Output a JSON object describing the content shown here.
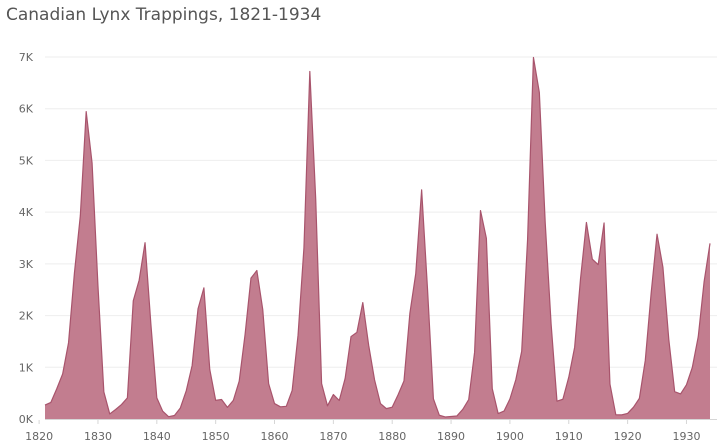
{
  "title": "Canadian Lynx Trappings, 1821-1934",
  "colors": {
    "area_fill": "#c27d8f",
    "area_line": "#a8546c",
    "gridline": "#eeeeee",
    "axis_line": "#d6d6d6"
  },
  "chart_data": {
    "type": "area",
    "title": "Canadian Lynx Trappings, 1821-1934",
    "xlabel": "",
    "ylabel": "",
    "xlim": [
      1821,
      1934
    ],
    "ylim": [
      0,
      7000
    ],
    "grid": true,
    "legend": "none",
    "x_ticks": [
      {
        "value": 1820,
        "label": "1820"
      },
      {
        "value": 1830,
        "label": "1830"
      },
      {
        "value": 1840,
        "label": "1840"
      },
      {
        "value": 1850,
        "label": "1850"
      },
      {
        "value": 1860,
        "label": "1860"
      },
      {
        "value": 1870,
        "label": "1870"
      },
      {
        "value": 1880,
        "label": "1880"
      },
      {
        "value": 1890,
        "label": "1890"
      },
      {
        "value": 1900,
        "label": "1900"
      },
      {
        "value": 1910,
        "label": "1910"
      },
      {
        "value": 1920,
        "label": "1920"
      },
      {
        "value": 1930,
        "label": "1930"
      }
    ],
    "y_ticks": [
      {
        "value": 0,
        "label": "0K"
      },
      {
        "value": 1000,
        "label": "1K"
      },
      {
        "value": 2000,
        "label": "2K"
      },
      {
        "value": 3000,
        "label": "3K"
      },
      {
        "value": 4000,
        "label": "4K"
      },
      {
        "value": 5000,
        "label": "5K"
      },
      {
        "value": 6000,
        "label": "6K"
      },
      {
        "value": 7000,
        "label": "7K"
      }
    ],
    "x": [
      1821,
      1822,
      1823,
      1824,
      1825,
      1826,
      1827,
      1828,
      1829,
      1830,
      1831,
      1832,
      1833,
      1834,
      1835,
      1836,
      1837,
      1838,
      1839,
      1840,
      1841,
      1842,
      1843,
      1844,
      1845,
      1846,
      1847,
      1848,
      1849,
      1850,
      1851,
      1852,
      1853,
      1854,
      1855,
      1856,
      1857,
      1858,
      1859,
      1860,
      1861,
      1862,
      1863,
      1864,
      1865,
      1866,
      1867,
      1868,
      1869,
      1870,
      1871,
      1872,
      1873,
      1874,
      1875,
      1876,
      1877,
      1878,
      1879,
      1880,
      1881,
      1882,
      1883,
      1884,
      1885,
      1886,
      1887,
      1888,
      1889,
      1890,
      1891,
      1892,
      1893,
      1894,
      1895,
      1896,
      1897,
      1898,
      1899,
      1900,
      1901,
      1902,
      1903,
      1904,
      1905,
      1906,
      1907,
      1908,
      1909,
      1910,
      1911,
      1912,
      1913,
      1914,
      1915,
      1916,
      1917,
      1918,
      1919,
      1920,
      1921,
      1922,
      1923,
      1924,
      1925,
      1926,
      1927,
      1928,
      1929,
      1930,
      1931,
      1932,
      1933,
      1934
    ],
    "series": [
      {
        "values": [
          269,
          321,
          585,
          871,
          1475,
          2821,
          3928,
          5943,
          4950,
          2577,
          523,
          98,
          184,
          279,
          409,
          2285,
          2685,
          3409,
          1824,
          409,
          151,
          45,
          68,
          213,
          546,
          1033,
          2129,
          2536,
          957,
          361,
          377,
          225,
          360,
          731,
          1638,
          2725,
          2871,
          2119,
          684,
          299,
          236,
          245,
          552,
          1623,
          3311,
          6721,
          4254,
          687,
          255,
          473,
          358,
          784,
          1594,
          1676,
          2251,
          1426,
          756,
          299,
          201,
          229,
          469,
          736,
          2042,
          2811,
          4431,
          2511,
          389,
          73,
          39,
          49,
          59,
          188,
          377,
          1292,
          4031,
          3495,
          587,
          105,
          153,
          387,
          758,
          1307,
          3465,
          6991,
          6313,
          3794,
          1836,
          345,
          382,
          808,
          1388,
          2713,
          3800,
          3091,
          2985,
          3790,
          674,
          81,
          80,
          108,
          229,
          399,
          1132,
          2432,
          3574,
          2935,
          1537,
          529,
          485,
          662,
          1000,
          1590,
          2657,
          3396
        ]
      }
    ]
  }
}
